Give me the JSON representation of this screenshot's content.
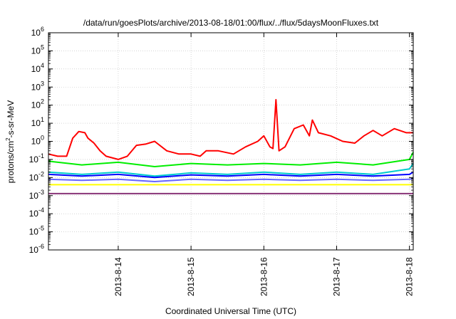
{
  "chart_data": {
    "type": "line",
    "title": "/data/run/goesPlots/archive/2013-08-18/01:00/flux/../flux/5daysMoonFluxes.txt",
    "xlabel": "Coordinated Universal Time (UTC)",
    "ylabel": {
      "prefix": "protons/cm",
      "superscript": "2",
      "suffix": "-s-sr-MeV"
    },
    "y_scale": "log",
    "ylim": [
      1e-06,
      1000000.0
    ],
    "xlim": [
      "2013-08-13 01:00",
      "2013-08-18 01:15"
    ],
    "grid": true,
    "legend": "none",
    "y_ticks": [
      {
        "value": 1e-06,
        "mantissa": "10",
        "exp": "-6"
      },
      {
        "value": 1e-05,
        "mantissa": "10",
        "exp": "-5"
      },
      {
        "value": 0.0001,
        "mantissa": "10",
        "exp": "-4"
      },
      {
        "value": 0.001,
        "mantissa": "10",
        "exp": "-3"
      },
      {
        "value": 0.01,
        "mantissa": "10",
        "exp": "-2"
      },
      {
        "value": 0.1,
        "mantissa": "10",
        "exp": "-1"
      },
      {
        "value": 1,
        "mantissa": "10",
        "exp": "0"
      },
      {
        "value": 10,
        "mantissa": "10",
        "exp": "1"
      },
      {
        "value": 100,
        "mantissa": "10",
        "exp": "2"
      },
      {
        "value": 1000,
        "mantissa": "10",
        "exp": "3"
      },
      {
        "value": 10000,
        "mantissa": "10",
        "exp": "4"
      },
      {
        "value": 100000,
        "mantissa": "10",
        "exp": "5"
      },
      {
        "value": 1000000,
        "mantissa": "10",
        "exp": "6"
      }
    ],
    "x_ticks": [
      "2013-8-14",
      "2013-8-15",
      "2013-8-16",
      "2013-8-17",
      "2013-8-18"
    ],
    "x_tick_values": [
      "2013-08-14 00:00",
      "2013-08-15 00:00",
      "2013-08-16 00:00",
      "2013-08-17 00:00",
      "2013-08-18 00:00"
    ],
    "series": [
      {
        "color": "#ff0000",
        "x": [
          "2013-08-13 01:00",
          "2013-08-13 04:00",
          "2013-08-13 07:00",
          "2013-08-13 09:00",
          "2013-08-13 11:00",
          "2013-08-13 13:00",
          "2013-08-13 14:00",
          "2013-08-13 16:00",
          "2013-08-13 18:00",
          "2013-08-13 20:00",
          "2013-08-14 00:00",
          "2013-08-14 03:00",
          "2013-08-14 06:00",
          "2013-08-14 09:00",
          "2013-08-14 12:00",
          "2013-08-14 16:00",
          "2013-08-14 20:00",
          "2013-08-15 00:00",
          "2013-08-15 03:00",
          "2013-08-15 05:00",
          "2013-08-15 09:00",
          "2013-08-15 14:00",
          "2013-08-15 18:00",
          "2013-08-15 22:00",
          "2013-08-16 00:00",
          "2013-08-16 02:00",
          "2013-08-16 03:00",
          "2013-08-16 04:00",
          "2013-08-16 05:00",
          "2013-08-16 07:00",
          "2013-08-16 10:00",
          "2013-08-16 13:00",
          "2013-08-16 15:00",
          "2013-08-16 16:00",
          "2013-08-16 18:00",
          "2013-08-16 22:00",
          "2013-08-17 02:00",
          "2013-08-17 06:00",
          "2013-08-17 09:00",
          "2013-08-17 12:00",
          "2013-08-17 15:00",
          "2013-08-17 19:00",
          "2013-08-17 23:00",
          "2013-08-18 01:15"
        ],
        "y": [
          0.2,
          0.15,
          0.15,
          1.5,
          3.5,
          3.0,
          1.5,
          0.8,
          0.3,
          0.15,
          0.1,
          0.15,
          0.6,
          0.7,
          1.0,
          0.3,
          0.2,
          0.2,
          0.15,
          0.3,
          0.3,
          0.2,
          0.5,
          1.0,
          2.0,
          0.5,
          0.4,
          200,
          0.3,
          0.5,
          5.0,
          8.0,
          2.0,
          15,
          3.0,
          2.0,
          1.0,
          0.8,
          2.0,
          4.0,
          2.0,
          5.0,
          3.0,
          3.0
        ]
      },
      {
        "color": "#00ee00",
        "x": [
          "2013-08-13 01:00",
          "2013-08-13 12:00",
          "2013-08-14 00:00",
          "2013-08-14 12:00",
          "2013-08-15 00:00",
          "2013-08-15 12:00",
          "2013-08-16 00:00",
          "2013-08-16 12:00",
          "2013-08-17 00:00",
          "2013-08-17 12:00",
          "2013-08-18 00:00",
          "2013-08-18 01:15"
        ],
        "y": [
          0.08,
          0.05,
          0.07,
          0.04,
          0.06,
          0.05,
          0.06,
          0.05,
          0.07,
          0.05,
          0.1,
          0.25
        ]
      },
      {
        "color": "#00cccc",
        "x": [
          "2013-08-13 01:00",
          "2013-08-13 12:00",
          "2013-08-14 00:00",
          "2013-08-14 12:00",
          "2013-08-15 00:00",
          "2013-08-15 12:00",
          "2013-08-16 00:00",
          "2013-08-16 12:00",
          "2013-08-17 00:00",
          "2013-08-17 12:00",
          "2013-08-18 00:00",
          "2013-08-18 01:15"
        ],
        "y": [
          0.02,
          0.015,
          0.02,
          0.012,
          0.018,
          0.015,
          0.02,
          0.015,
          0.02,
          0.015,
          0.03,
          0.06
        ]
      },
      {
        "color": "#0000ff",
        "x": [
          "2013-08-13 01:00",
          "2013-08-13 12:00",
          "2013-08-14 00:00",
          "2013-08-14 12:00",
          "2013-08-15 00:00",
          "2013-08-15 12:00",
          "2013-08-16 00:00",
          "2013-08-16 12:00",
          "2013-08-17 00:00",
          "2013-08-17 12:00",
          "2013-08-18 00:00",
          "2013-08-18 01:15"
        ],
        "y": [
          0.015,
          0.012,
          0.015,
          0.01,
          0.014,
          0.012,
          0.015,
          0.012,
          0.015,
          0.012,
          0.015,
          0.02
        ]
      },
      {
        "color": "#6666ff",
        "x": [
          "2013-08-13 01:00",
          "2013-08-13 12:00",
          "2013-08-14 00:00",
          "2013-08-14 12:00",
          "2013-08-15 00:00",
          "2013-08-15 12:00",
          "2013-08-16 00:00",
          "2013-08-16 12:00",
          "2013-08-17 00:00",
          "2013-08-17 12:00",
          "2013-08-18 00:00",
          "2013-08-18 01:15"
        ],
        "y": [
          0.008,
          0.007,
          0.008,
          0.006,
          0.008,
          0.007,
          0.008,
          0.007,
          0.008,
          0.007,
          0.008,
          0.009
        ]
      },
      {
        "color": "#ffff00",
        "x": [
          "2013-08-13 01:00",
          "2013-08-13 12:00",
          "2013-08-14 00:00",
          "2013-08-14 12:00",
          "2013-08-15 00:00",
          "2013-08-15 12:00",
          "2013-08-16 00:00",
          "2013-08-16 12:00",
          "2013-08-17 00:00",
          "2013-08-17 12:00",
          "2013-08-18 00:00",
          "2013-08-18 01:15"
        ],
        "y": [
          0.004,
          0.004,
          0.004,
          0.004,
          0.004,
          0.004,
          0.004,
          0.004,
          0.004,
          0.004,
          0.004,
          0.004
        ]
      },
      {
        "color": "#883377",
        "x": [
          "2013-08-13 01:00",
          "2013-08-13 12:00",
          "2013-08-14 00:00",
          "2013-08-14 12:00",
          "2013-08-15 00:00",
          "2013-08-15 12:00",
          "2013-08-16 00:00",
          "2013-08-16 12:00",
          "2013-08-17 00:00",
          "2013-08-17 12:00",
          "2013-08-18 00:00",
          "2013-08-18 01:15"
        ],
        "y": [
          0.0013,
          0.0013,
          0.0013,
          0.0013,
          0.0013,
          0.0013,
          0.0013,
          0.0013,
          0.0013,
          0.0013,
          0.0013,
          0.0013
        ]
      }
    ]
  }
}
